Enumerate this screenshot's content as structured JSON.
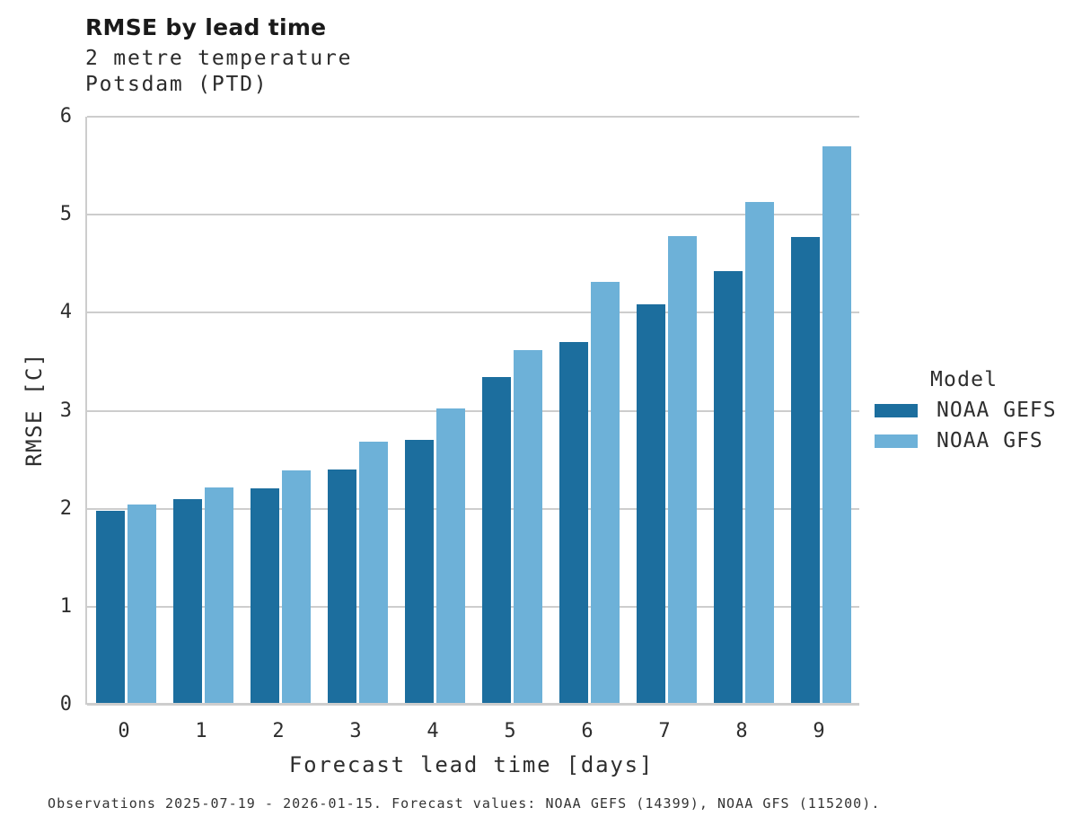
{
  "header": {
    "title": "RMSE by lead time",
    "subtitle_line1": "2 metre temperature",
    "subtitle_line2": "Potsdam (PTD)"
  },
  "chart_data": {
    "type": "bar",
    "title": "RMSE by lead time",
    "subtitle": [
      "2 metre temperature",
      "Potsdam (PTD)"
    ],
    "categories": [
      "0",
      "1",
      "2",
      "3",
      "4",
      "5",
      "6",
      "7",
      "8",
      "9"
    ],
    "series": [
      {
        "name": "NOAA GEFS",
        "color": "#1c6e9e",
        "values": [
          1.98,
          2.1,
          2.21,
          2.4,
          2.7,
          3.34,
          3.7,
          4.09,
          4.42,
          4.77
        ]
      },
      {
        "name": "NOAA GFS",
        "color": "#6db1d8",
        "values": [
          2.04,
          2.22,
          2.39,
          2.68,
          3.02,
          3.62,
          4.31,
          4.78,
          5.13,
          5.7
        ]
      }
    ],
    "xlabel": "Forecast lead time [days]",
    "ylabel": "RMSE [C]",
    "ylim": [
      0,
      6
    ],
    "yticks": [
      "0",
      "1",
      "2",
      "3",
      "4",
      "5",
      "6"
    ],
    "grid": true,
    "grid_color": "#cdcdcd",
    "legend_title": "Model",
    "legend_position": "right"
  },
  "footer": {
    "text": "Observations 2025-07-19 - 2026-01-15. Forecast values: NOAA GEFS (14399), NOAA GFS (115200)."
  },
  "colors": {
    "accent_dark": "#1c6e9e",
    "accent_light": "#6db1d8",
    "grid": "#cdcdcd",
    "title_text": "#1a1a1a",
    "body_text": "#2e2e2e"
  }
}
